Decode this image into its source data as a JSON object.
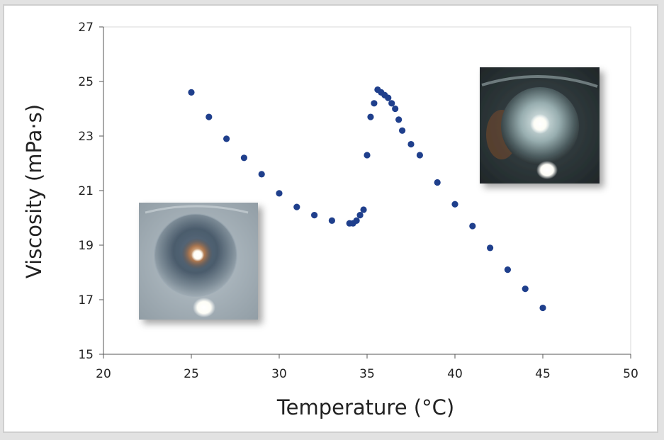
{
  "chart_data": {
    "type": "scatter",
    "xlabel": "Temperature (°C)",
    "ylabel": "Viscosity (mPa·s)",
    "xlim": [
      20,
      50
    ],
    "ylim": [
      15,
      27
    ],
    "xticks": [
      20,
      25,
      30,
      35,
      40,
      45,
      50
    ],
    "yticks": [
      15,
      17,
      19,
      21,
      23,
      25,
      27
    ],
    "grid": false,
    "legend": "none",
    "marker_color": "#1f3f8c",
    "series": [
      {
        "x": [
          25,
          26,
          27,
          28,
          29,
          30,
          31,
          32,
          33,
          34,
          34.2,
          34.4,
          34.6,
          34.8,
          35,
          35.2,
          35.4,
          35.6,
          35.8,
          36,
          36.2,
          36.4,
          36.6,
          36.8,
          37,
          37.5,
          38,
          39,
          40,
          41,
          42,
          43,
          44,
          45
        ],
        "y": [
          24.6,
          23.7,
          22.9,
          22.2,
          21.6,
          20.9,
          20.4,
          20.1,
          19.9,
          19.8,
          19.8,
          19.9,
          20.1,
          20.3,
          22.3,
          23.7,
          24.2,
          24.7,
          24.6,
          24.5,
          24.4,
          24.2,
          24.0,
          23.6,
          23.2,
          22.7,
          22.3,
          21.3,
          20.5,
          19.7,
          18.9,
          18.1,
          17.4,
          16.7
        ]
      }
    ]
  },
  "insets": {
    "below_transition_photo": "cloudy-lens-photo",
    "above_transition_photo": "clear-lens-photo"
  }
}
